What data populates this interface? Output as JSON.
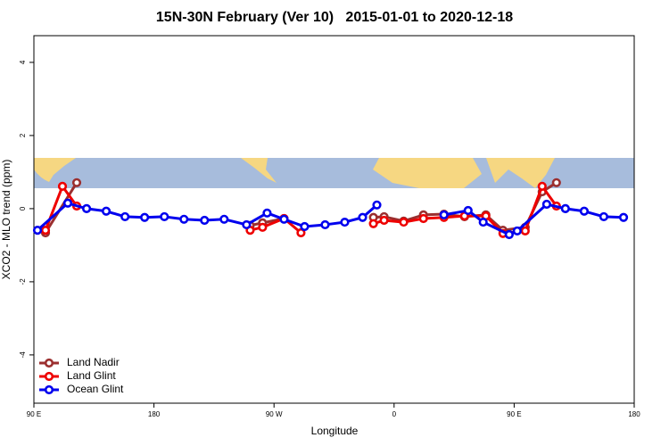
{
  "chart_data": {
    "type": "line",
    "title": "15N-30N February (Ver 10)   2015-01-01 to 2020-12-18",
    "x_label": "Longitude",
    "y_label": "XCO2 - MLO trend (ppm)",
    "xlim": [
      90,
      540
    ],
    "ylim": [
      -5.32,
      4.73
    ],
    "xticks": [
      {
        "value": 90,
        "label": "90 E"
      },
      180,
      {
        "value": 270,
        "label": "90 W"
      },
      {
        "value": 360,
        "label": "0"
      },
      {
        "value": 450,
        "label": "90 E"
      },
      {
        "value": 540,
        "label": "180"
      }
    ],
    "yticks": [
      -4,
      -2,
      0,
      2,
      4
    ],
    "legend": "bottom-left",
    "series": [
      {
        "name": "Land Nadir",
        "color": "#9b2f2f",
        "x": [
          98.7,
          122.1,
          null,
          252.1,
          261.4,
          277.5,
          null,
          344.5,
          352.5,
          367.2,
          382,
          397.4,
          412.8,
          428.8,
          441.6,
          458.3,
          471,
          481.7
        ],
        "values": [
          -0.66,
          0.71,
          null,
          -0.46,
          -0.39,
          -0.27,
          null,
          -0.24,
          -0.22,
          -0.34,
          -0.17,
          -0.15,
          -0.22,
          -0.17,
          -0.59,
          -0.51,
          0.46,
          0.71
        ]
      },
      {
        "name": "Land Glint",
        "color": "#ee0000",
        "x": [
          98.7,
          111.4,
          122.1,
          null,
          252.1,
          261.4,
          277.5,
          290.2,
          null,
          344.5,
          352.5,
          367.2,
          382,
          397.4,
          412.8,
          428.8,
          441.6,
          458.3,
          471,
          481.7
        ],
        "values": [
          -0.59,
          0.61,
          0.07,
          null,
          -0.59,
          -0.51,
          -0.27,
          -0.66,
          null,
          -0.41,
          -0.32,
          -0.37,
          -0.27,
          -0.24,
          -0.2,
          -0.2,
          -0.68,
          -0.61,
          0.61,
          0.07
        ]
      },
      {
        "name": "Ocean Glint",
        "color": "#0000ee",
        "x": [
          92.7,
          115.4,
          129.5,
          144.2,
          158.3,
          173,
          187.8,
          202.5,
          217.9,
          232.6,
          249.4,
          264.8,
          277.5,
          292.9,
          308.3,
          323,
          336.4,
          347.1,
          null,
          397.4,
          415.5,
          426.8,
          446.3,
          452.3,
          474.4,
          488.4,
          502.5,
          517.2,
          532
        ],
        "values": [
          -0.59,
          0.15,
          0.0,
          -0.07,
          -0.22,
          -0.24,
          -0.22,
          -0.29,
          -0.32,
          -0.29,
          -0.44,
          -0.12,
          -0.29,
          -0.49,
          -0.44,
          -0.37,
          -0.24,
          0.1,
          null,
          -0.17,
          -0.05,
          -0.37,
          -0.71,
          -0.61,
          0.12,
          0.0,
          -0.07,
          -0.22,
          -0.24
        ]
      }
    ]
  }
}
